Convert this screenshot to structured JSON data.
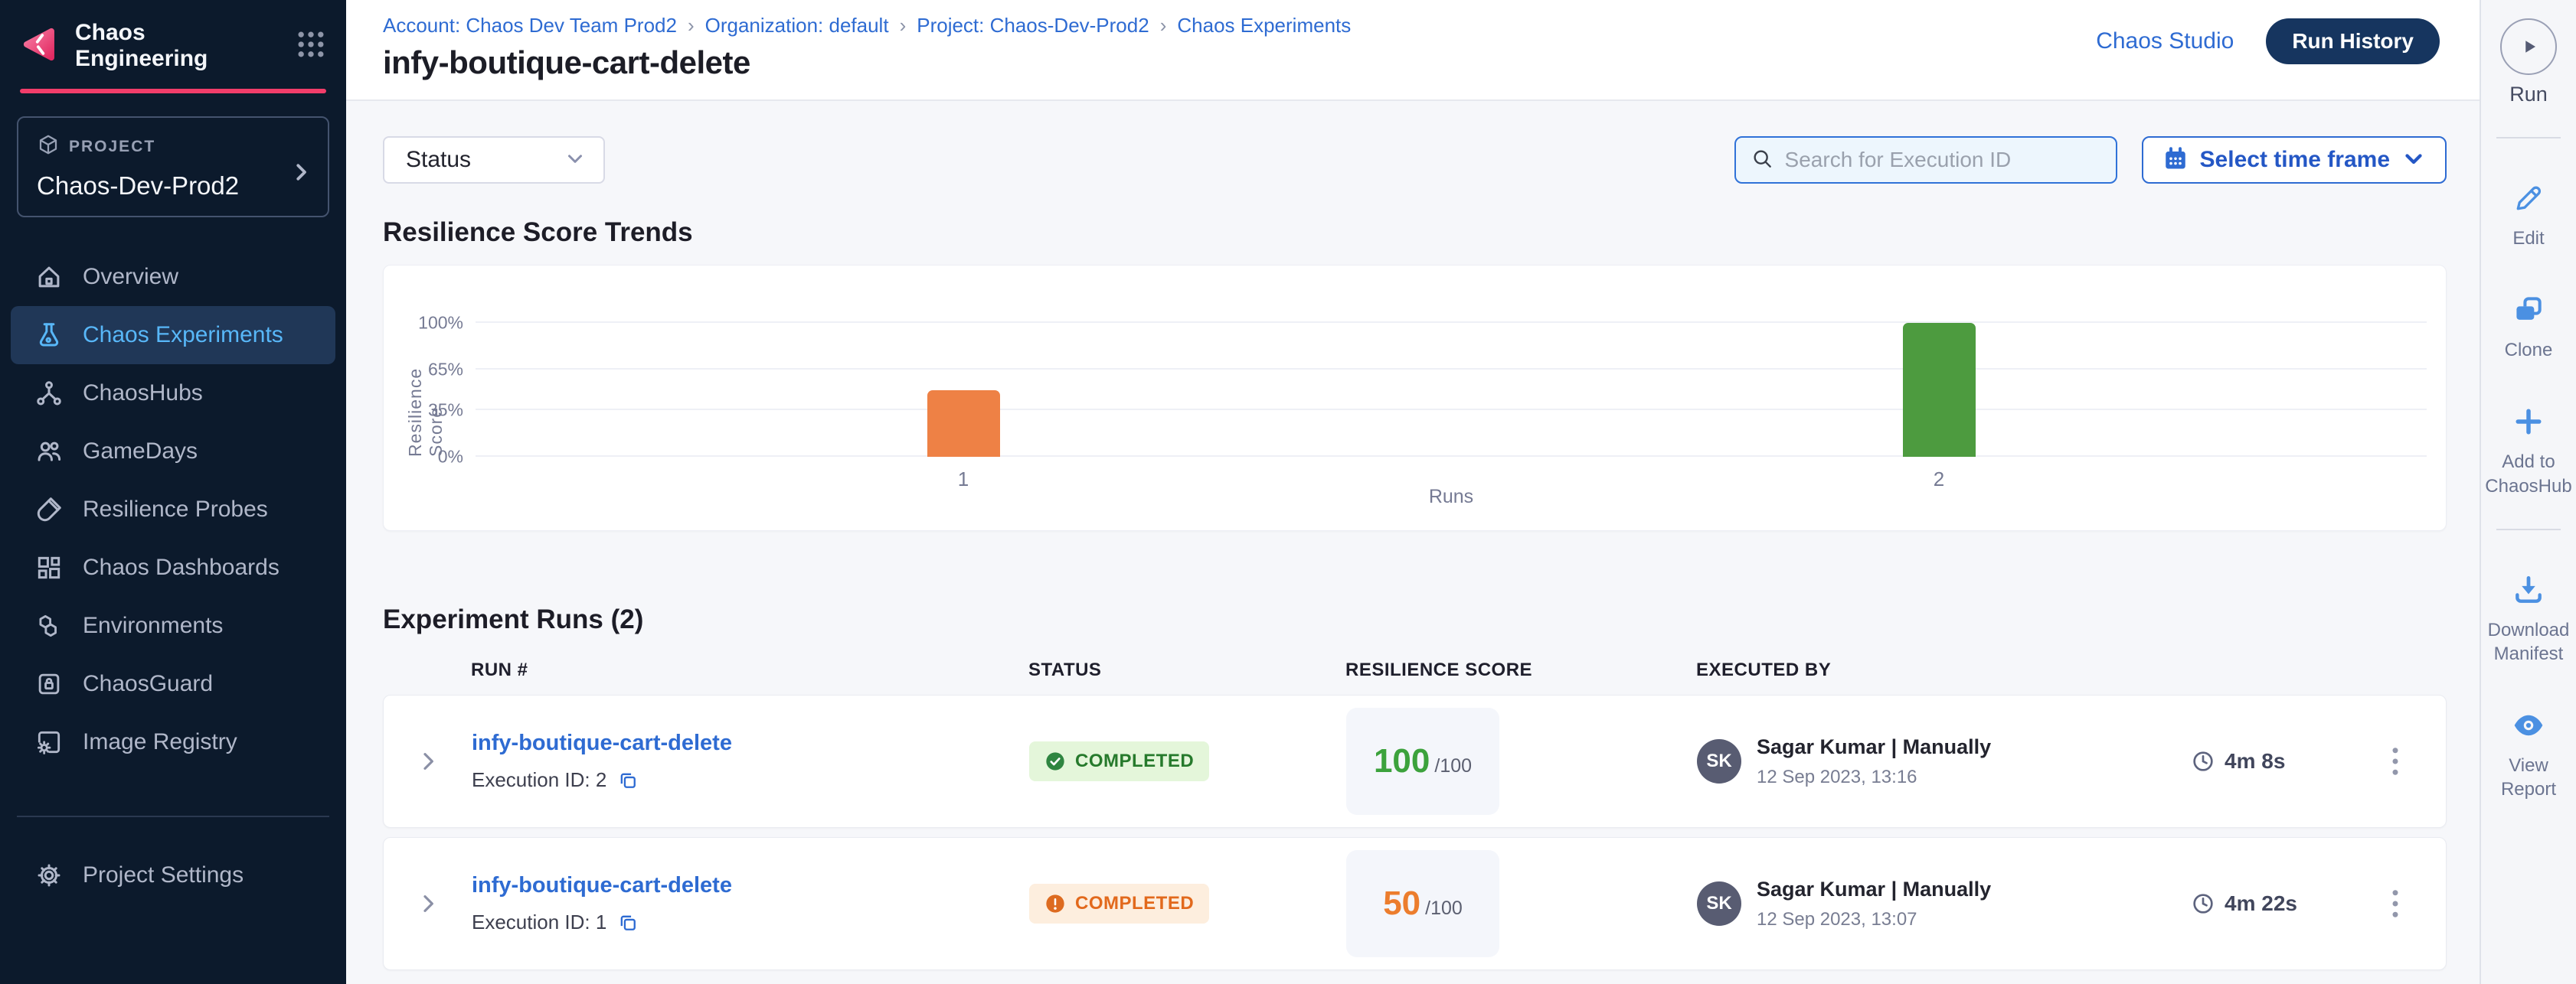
{
  "app": {
    "title": "Chaos Engineering"
  },
  "breadcrumb": {
    "items": [
      "Account: Chaos Dev Team Prod2",
      "Organization: default",
      "Project: Chaos-Dev-Prod2",
      "Chaos Experiments"
    ]
  },
  "page": {
    "title": "infy-boutique-cart-delete",
    "studio_link": "Chaos Studio",
    "run_history_button": "Run History"
  },
  "sidebar": {
    "project": {
      "label": "PROJECT",
      "name": "Chaos-Dev-Prod2"
    },
    "items": [
      {
        "label": "Overview"
      },
      {
        "label": "Chaos Experiments"
      },
      {
        "label": "ChaosHubs"
      },
      {
        "label": "GameDays"
      },
      {
        "label": "Resilience Probes"
      },
      {
        "label": "Chaos Dashboards"
      },
      {
        "label": "Environments"
      },
      {
        "label": "ChaosGuard"
      },
      {
        "label": "Image Registry"
      }
    ],
    "settings": "Project Settings"
  },
  "rail": {
    "run": "Run",
    "edit": "Edit",
    "clone": "Clone",
    "add_to_chaoshub": "Add to ChaosHub",
    "download_manifest": "Download Manifest",
    "view_report": "View Report"
  },
  "filters": {
    "status_label": "Status",
    "search_placeholder": "Search for Execution ID",
    "time_frame_label": "Select time frame"
  },
  "trends": {
    "title": "Resilience Score Trends"
  },
  "chart_data": {
    "type": "bar",
    "title": "Resilience Score Trends",
    "categories": [
      "1",
      "2"
    ],
    "values": [
      50,
      100
    ],
    "bar_colors": [
      "#ee8145",
      "#4d9b3f"
    ],
    "xlabel": "Runs",
    "ylabel": "Resilience Score",
    "yticks": [
      "0%",
      "35%",
      "65%",
      "100%"
    ],
    "ytick_values": [
      0,
      35,
      65,
      100
    ],
    "ylim": [
      0,
      100
    ],
    "grid": true,
    "legend": false
  },
  "runs": {
    "title": "Experiment Runs (2)",
    "columns": [
      "RUN #",
      "STATUS",
      "RESILIENCE SCORE",
      "EXECUTED BY"
    ],
    "rows": [
      {
        "name": "infy-boutique-cart-delete",
        "execution_id": "Execution ID: 2",
        "status": "COMPLETED",
        "status_kind": "success",
        "score": "100",
        "score_denom": "/100",
        "avatar_initials": "SK",
        "executed_by": "Sagar Kumar | Manually",
        "executed_on": "12 Sep 2023, 13:16",
        "duration": "4m 8s"
      },
      {
        "name": "infy-boutique-cart-delete",
        "execution_id": "Execution ID: 1",
        "status": "COMPLETED",
        "status_kind": "warning",
        "score": "50",
        "score_denom": "/100",
        "avatar_initials": "SK",
        "executed_by": "Sagar Kumar | Manually",
        "executed_on": "12 Sep 2023, 13:07",
        "duration": "4m 22s"
      }
    ]
  },
  "colors": {
    "module_accent_pink": "#f23d6a",
    "link_blue": "#2e6bd2",
    "nav_active_blue": "#58b7f8",
    "success_green": "#267a2c",
    "warning_orange": "#e2691c",
    "bar_orange": "#ee8145",
    "bar_green": "#4d9b3f",
    "sidebar_bg": "#0c1a2c",
    "run_history_bg": "#16355f"
  }
}
